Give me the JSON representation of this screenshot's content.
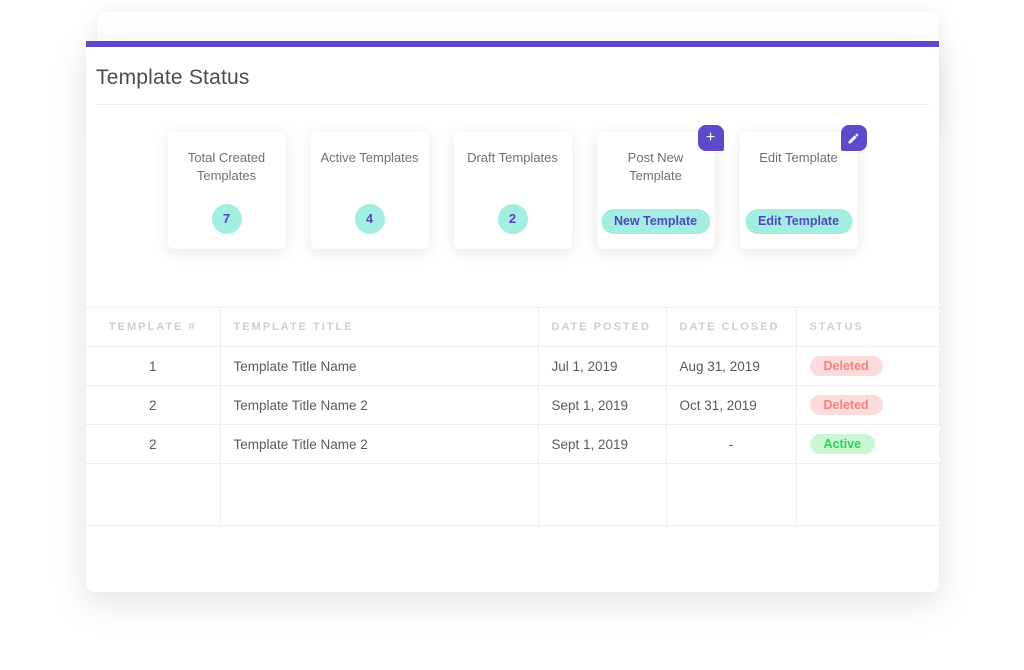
{
  "header": {
    "title": "Template Status"
  },
  "colors": {
    "accent_purple": "#5b4bcb",
    "accent_text_purple": "#5646c6",
    "teal": "#a2eee2",
    "status_deleted_bg": "#fbdbdb",
    "status_deleted_text": "#f98080",
    "status_active_bg": "#c9f8d3",
    "status_active_text": "#2ed160"
  },
  "stats": [
    {
      "label": "Total Created Templates",
      "value": "7"
    },
    {
      "label": "Active Templates",
      "value": "4"
    },
    {
      "label": "Draft Templates",
      "value": "2"
    },
    {
      "label": "Post New Template",
      "button_label": "New Template",
      "icon": "plus-icon"
    },
    {
      "label": "Edit Template",
      "button_label": "Edit Template",
      "icon": "pencil-icon"
    }
  ],
  "icons": {
    "plus_glyph": "+"
  },
  "table": {
    "columns": [
      "Template #",
      "Template Title",
      "Date Posted",
      "Date Closed",
      "Status"
    ],
    "rows": [
      {
        "number": "1",
        "title": "Template Title Name",
        "date_posted": "Jul 1, 2019",
        "date_closed": "Aug 31, 2019",
        "status": "Deleted",
        "status_type": "deleted"
      },
      {
        "number": "2",
        "title": "Template Title Name 2",
        "date_posted": "Sept 1, 2019",
        "date_closed": "Oct 31, 2019",
        "status": "Deleted",
        "status_type": "deleted"
      },
      {
        "number": "2",
        "title": "Template Title Name 2",
        "date_posted": "Sept 1, 2019",
        "date_closed": "-",
        "status": "Active",
        "status_type": "active"
      },
      {
        "number": "",
        "title": "",
        "date_posted": "",
        "date_closed": "",
        "status": "",
        "status_type": ""
      }
    ]
  }
}
